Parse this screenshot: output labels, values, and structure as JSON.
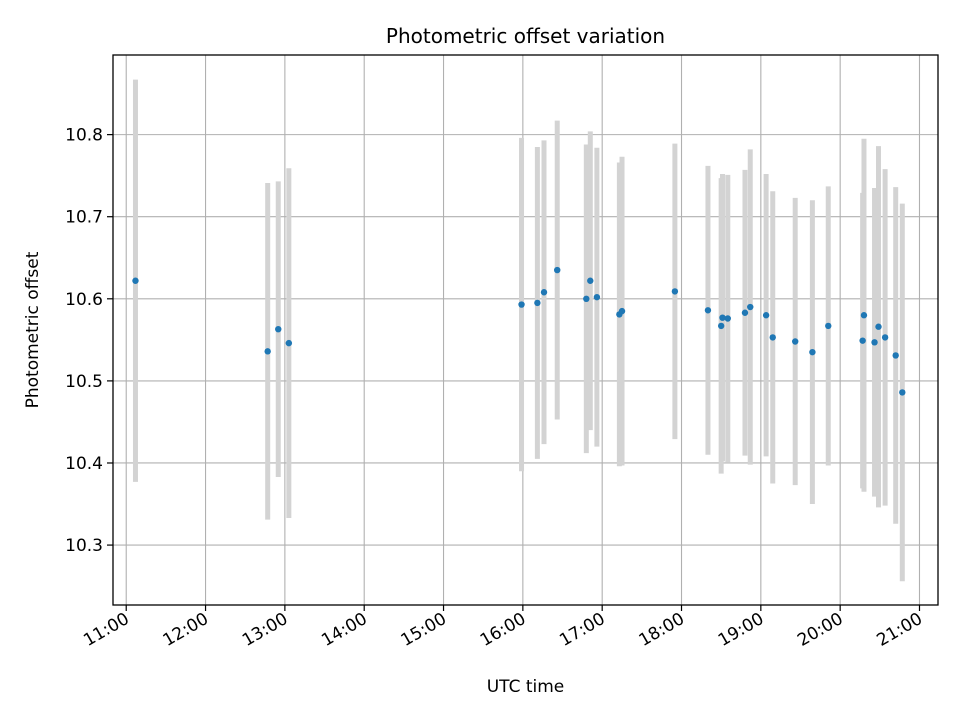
{
  "chart_data": {
    "type": "scatter",
    "title": "Photometric offset variation",
    "xlabel": "UTC time",
    "ylabel": "Photometric offset",
    "x_unit": "UTC time (HH:MM)",
    "xlim": [
      "10:50",
      "21:14"
    ],
    "ylim": [
      10.227,
      10.897
    ],
    "x_ticks": [
      "11:00",
      "12:00",
      "13:00",
      "14:00",
      "15:00",
      "16:00",
      "17:00",
      "18:00",
      "19:00",
      "20:00",
      "21:00"
    ],
    "y_ticks": [
      10.3,
      10.4,
      10.5,
      10.6,
      10.7,
      10.8
    ],
    "y_tick_labels": [
      "10.3",
      "10.4",
      "10.5",
      "10.6",
      "10.7",
      "10.8"
    ],
    "grid": true,
    "colors": {
      "point": "#1f77b4",
      "errorbar": "#d3d3d3",
      "grid": "#b0b0b0"
    },
    "points": [
      {
        "x": "11:07",
        "y": 10.622,
        "err": 0.245
      },
      {
        "x": "12:47",
        "y": 10.536,
        "err": 0.205
      },
      {
        "x": "12:55",
        "y": 10.563,
        "err": 0.18
      },
      {
        "x": "13:03",
        "y": 10.546,
        "err": 0.213
      },
      {
        "x": "15:59",
        "y": 10.593,
        "err": 0.203
      },
      {
        "x": "16:11",
        "y": 10.595,
        "err": 0.19
      },
      {
        "x": "16:16",
        "y": 10.608,
        "err": 0.185
      },
      {
        "x": "16:26",
        "y": 10.635,
        "err": 0.182
      },
      {
        "x": "16:48",
        "y": 10.6,
        "err": 0.188
      },
      {
        "x": "16:51",
        "y": 10.622,
        "err": 0.182
      },
      {
        "x": "16:56",
        "y": 10.602,
        "err": 0.182
      },
      {
        "x": "17:13",
        "y": 10.581,
        "err": 0.185
      },
      {
        "x": "17:15",
        "y": 10.585,
        "err": 0.188
      },
      {
        "x": "17:55",
        "y": 10.609,
        "err": 0.18
      },
      {
        "x": "18:20",
        "y": 10.586,
        "err": 0.176
      },
      {
        "x": "18:30",
        "y": 10.567,
        "err": 0.18
      },
      {
        "x": "18:31",
        "y": 10.577,
        "err": 0.175
      },
      {
        "x": "18:35",
        "y": 10.576,
        "err": 0.175
      },
      {
        "x": "18:48",
        "y": 10.583,
        "err": 0.174
      },
      {
        "x": "18:52",
        "y": 10.59,
        "err": 0.192
      },
      {
        "x": "19:04",
        "y": 10.58,
        "err": 0.172
      },
      {
        "x": "19:09",
        "y": 10.553,
        "err": 0.178
      },
      {
        "x": "19:26",
        "y": 10.548,
        "err": 0.175
      },
      {
        "x": "19:39",
        "y": 10.535,
        "err": 0.185
      },
      {
        "x": "19:51",
        "y": 10.567,
        "err": 0.17
      },
      {
        "x": "20:17",
        "y": 10.549,
        "err": 0.18
      },
      {
        "x": "20:18",
        "y": 10.58,
        "err": 0.215
      },
      {
        "x": "20:26",
        "y": 10.547,
        "err": 0.188
      },
      {
        "x": "20:29",
        "y": 10.566,
        "err": 0.22
      },
      {
        "x": "20:34",
        "y": 10.553,
        "err": 0.205
      },
      {
        "x": "20:42",
        "y": 10.531,
        "err": 0.205
      },
      {
        "x": "20:47",
        "y": 10.486,
        "err": 0.23
      }
    ]
  }
}
